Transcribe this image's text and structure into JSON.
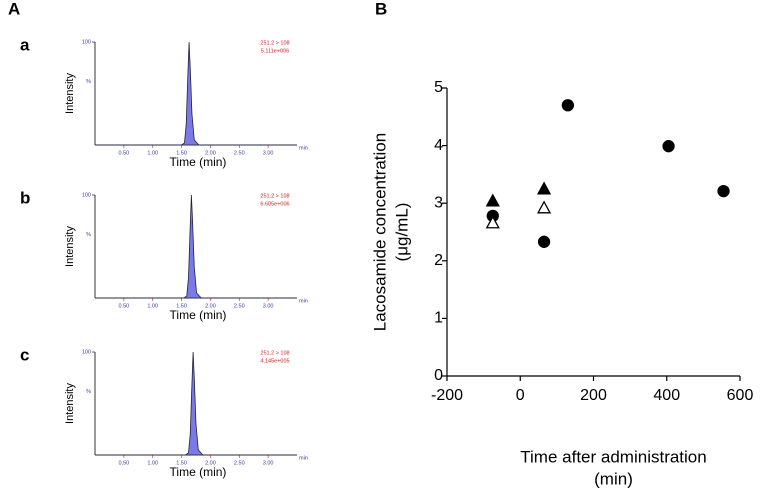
{
  "figure_labels": [
    "A",
    "B"
  ],
  "chart_data": [
    {
      "type": "area",
      "panel_label": "a",
      "ylabel": "Intensity",
      "y_unit": "%",
      "xlabel": "Time (min)",
      "x_unit": "min",
      "annotations": [
        "251.2 > 108",
        "5.111e+006"
      ],
      "xlim": [
        0,
        3.5
      ],
      "ylim": [
        0,
        100
      ],
      "xticks": [
        {
          "value": 0.5,
          "label": "0.50"
        },
        {
          "value": 1.0,
          "label": "1.00"
        },
        {
          "value": 1.5,
          "label": "1.50"
        },
        {
          "value": 2.0,
          "label": "2.00"
        },
        {
          "value": 2.5,
          "label": "2.50"
        },
        {
          "value": 3.0,
          "label": "3.00"
        }
      ],
      "yticks": [
        100
      ],
      "series": [
        {
          "color": "#7a7ae6",
          "x": [
            0,
            1.5,
            1.55,
            1.58,
            1.61,
            1.63,
            1.65,
            1.68,
            1.72,
            1.8,
            3.5
          ],
          "values": [
            0,
            0,
            2,
            20,
            70,
            100,
            75,
            30,
            5,
            0,
            0
          ]
        }
      ]
    },
    {
      "type": "area",
      "panel_label": "b",
      "ylabel": "Intensity",
      "y_unit": "%",
      "xlabel": "Time (min)",
      "x_unit": "min",
      "annotations": [
        "251.2 > 108",
        "6.605e+006"
      ],
      "xlim": [
        0,
        3.5
      ],
      "ylim": [
        0,
        100
      ],
      "xticks": [
        {
          "value": 0.5,
          "label": "0.50"
        },
        {
          "value": 1.0,
          "label": "1.00"
        },
        {
          "value": 1.5,
          "label": "1.50"
        },
        {
          "value": 2.0,
          "label": "2.00"
        },
        {
          "value": 2.5,
          "label": "2.50"
        },
        {
          "value": 3.0,
          "label": "3.00"
        }
      ],
      "yticks": [
        100
      ],
      "series": [
        {
          "color": "#7a7ae6",
          "x": [
            0,
            1.54,
            1.59,
            1.62,
            1.65,
            1.67,
            1.69,
            1.72,
            1.76,
            1.84,
            3.5
          ],
          "values": [
            0,
            0,
            2,
            20,
            70,
            100,
            75,
            30,
            5,
            0,
            0
          ]
        }
      ]
    },
    {
      "type": "area",
      "panel_label": "c",
      "ylabel": "Intensity",
      "y_unit": "%",
      "xlabel": "Time (min)",
      "x_unit": "min",
      "annotations": [
        "251.2 > 108",
        "4.145e+005"
      ],
      "xlim": [
        0,
        3.5
      ],
      "ylim": [
        0,
        100
      ],
      "xticks": [
        {
          "value": 0.5,
          "label": "0.50"
        },
        {
          "value": 1.0,
          "label": "1.00"
        },
        {
          "value": 1.5,
          "label": "1.50"
        },
        {
          "value": 2.0,
          "label": "2.00"
        },
        {
          "value": 2.5,
          "label": "2.50"
        },
        {
          "value": 3.0,
          "label": "3.00"
        }
      ],
      "yticks": [
        100
      ],
      "series": [
        {
          "color": "#7a7ae6",
          "x": [
            0,
            1.57,
            1.62,
            1.65,
            1.68,
            1.7,
            1.72,
            1.75,
            1.79,
            1.87,
            3.5
          ],
          "values": [
            0,
            0,
            2,
            20,
            70,
            100,
            75,
            30,
            5,
            0,
            0
          ]
        }
      ]
    },
    {
      "type": "scatter",
      "ylabel": [
        "Lacosamide concentration",
        "(μg/mL)"
      ],
      "xlabel": [
        "Time after administration",
        "(min)"
      ],
      "xlim": [
        -200,
        600
      ],
      "ylim": [
        0,
        5
      ],
      "xticks": [
        -200,
        0,
        200,
        400,
        600
      ],
      "yticks": [
        0,
        1,
        2,
        3,
        4,
        5
      ],
      "series": [
        {
          "color": "#000000",
          "marker": "circle",
          "filled": true,
          "x": [
            -75,
            65,
            130,
            405,
            555
          ],
          "values": [
            2.78,
            2.33,
            4.7,
            3.99,
            3.21
          ]
        },
        {
          "color": "#000000",
          "marker": "triangle",
          "filled": true,
          "x": [
            -75,
            65
          ],
          "values": [
            3.04,
            3.25
          ]
        },
        {
          "color": "#000000",
          "marker": "triangle",
          "filled": false,
          "x": [
            -75,
            65
          ],
          "values": [
            2.66,
            2.92
          ]
        }
      ]
    }
  ]
}
